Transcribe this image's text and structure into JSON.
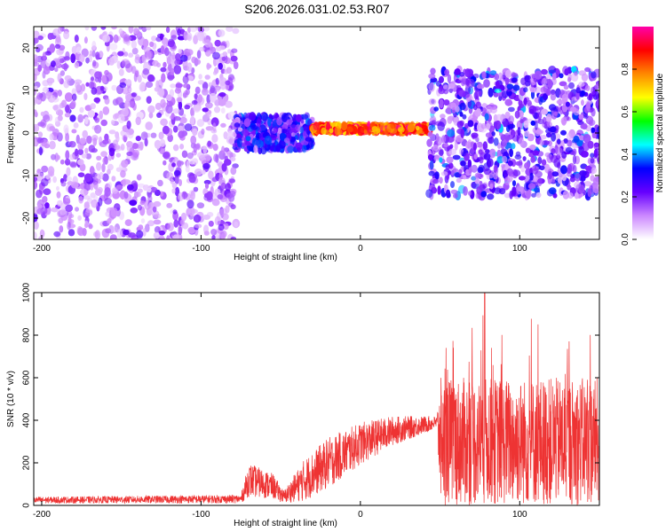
{
  "title": "S206.2026.031.02.53.R07",
  "chart_data": [
    {
      "type": "heatmap",
      "name": "spectrogram",
      "xlabel": "Height of straight line (km)",
      "ylabel": "Frequency (Hz)",
      "xlim": [
        -205,
        150
      ],
      "ylim": [
        -25,
        25
      ],
      "xticks": [
        -200,
        -100,
        0,
        100
      ],
      "yticks": [
        -20,
        -10,
        0,
        10,
        20
      ],
      "regions": [
        {
          "x": [
            -205,
            -78
          ],
          "description": "sparse noise",
          "freq_spread": 25,
          "amplitude": 0.15
        },
        {
          "x": [
            -78,
            -30
          ],
          "description": "weak band",
          "freq_spread": 4,
          "amplitude": 0.3
        },
        {
          "x": [
            -30,
            43
          ],
          "description": "strong narrow band",
          "freq_center": 1,
          "freq_spread": 1.5,
          "amplitude": 0.9
        },
        {
          "x": [
            43,
            150
          ],
          "description": "broad noise",
          "freq_spread": 15,
          "amplitude": 0.25
        }
      ],
      "colorbar": {
        "label": "Normalized spectral amplitude",
        "range": [
          0,
          1
        ],
        "ticks": [
          "0.0",
          "0.2",
          "0.4",
          "0.6",
          "0.8"
        ],
        "colors": [
          "#ffffff",
          "#cc88ff",
          "#6600ff",
          "#0000ff",
          "#00ffff",
          "#00ff00",
          "#ffff00",
          "#ff8800",
          "#ff0000",
          "#ff00aa"
        ]
      }
    },
    {
      "type": "line",
      "name": "snr",
      "xlabel": "Height of straight line (km)",
      "ylabel": "SNR (10 * v/v)",
      "xlim": [
        -205,
        150
      ],
      "ylim": [
        0,
        1000
      ],
      "xticks": [
        -200,
        -100,
        0,
        100
      ],
      "yticks": [
        0,
        200,
        400,
        600,
        800,
        1000
      ],
      "series_color": "#ee3333",
      "profile": [
        {
          "x": -205,
          "y_mean": 25,
          "y_amp": 15
        },
        {
          "x": -75,
          "y_mean": 30,
          "y_amp": 20
        },
        {
          "x": -70,
          "y_mean": 120,
          "y_amp": 80
        },
        {
          "x": -55,
          "y_mean": 90,
          "y_amp": 60
        },
        {
          "x": -48,
          "y_mean": 40,
          "y_amp": 30
        },
        {
          "x": -35,
          "y_mean": 120,
          "y_amp": 100
        },
        {
          "x": -20,
          "y_mean": 200,
          "y_amp": 120
        },
        {
          "x": 0,
          "y_mean": 290,
          "y_amp": 100
        },
        {
          "x": 20,
          "y_mean": 350,
          "y_amp": 70
        },
        {
          "x": 48,
          "y_mean": 390,
          "y_amp": 30
        },
        {
          "x": 50,
          "y_mean": 300,
          "y_amp": 300
        },
        {
          "x": 150,
          "y_mean": 300,
          "y_amp": 300
        }
      ],
      "peak": {
        "x": 78,
        "y": 1000
      }
    }
  ]
}
